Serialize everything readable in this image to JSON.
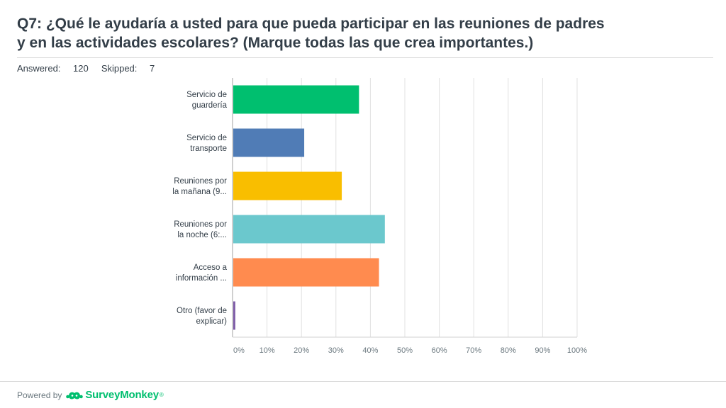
{
  "header": {
    "title_line1": "Q7: ¿Qué le ayudaría a usted para que pueda participar en las reuniones de padres",
    "title_line2": "y en las actividades escolares? (Marque todas las que crea importantes.)",
    "answered_label": "Answered:",
    "answered_value": "120",
    "skipped_label": "Skipped:",
    "skipped_value": "7"
  },
  "footer": {
    "powered_by": "Powered by",
    "brand": "SurveyMonkey",
    "brand_mark": "®",
    "logo_icon": "surveymonkey-logo-icon"
  },
  "chart_data": {
    "type": "bar",
    "orientation": "horizontal",
    "categories": [
      [
        "Servicio de",
        "guardería"
      ],
      [
        "Servicio de",
        "transporte"
      ],
      [
        "Reuniones por",
        "la mañana (9..."
      ],
      [
        "Reuniones por",
        "la noche (6:..."
      ],
      [
        "Acceso a",
        "información ..."
      ],
      [
        "Otro (favor de",
        "explicar)"
      ]
    ],
    "values": [
      36.7,
      20.8,
      31.7,
      44.2,
      42.5,
      0.8
    ],
    "colors": [
      "#00bf6f",
      "#507cb6",
      "#f9be00",
      "#6bc8cd",
      "#ff8b4f",
      "#7d5ba6"
    ],
    "x_ticks": [
      "0%",
      "10%",
      "20%",
      "30%",
      "40%",
      "50%",
      "60%",
      "70%",
      "80%",
      "90%",
      "100%"
    ],
    "xlim": [
      0,
      100
    ],
    "grid": true,
    "legend": "none"
  }
}
